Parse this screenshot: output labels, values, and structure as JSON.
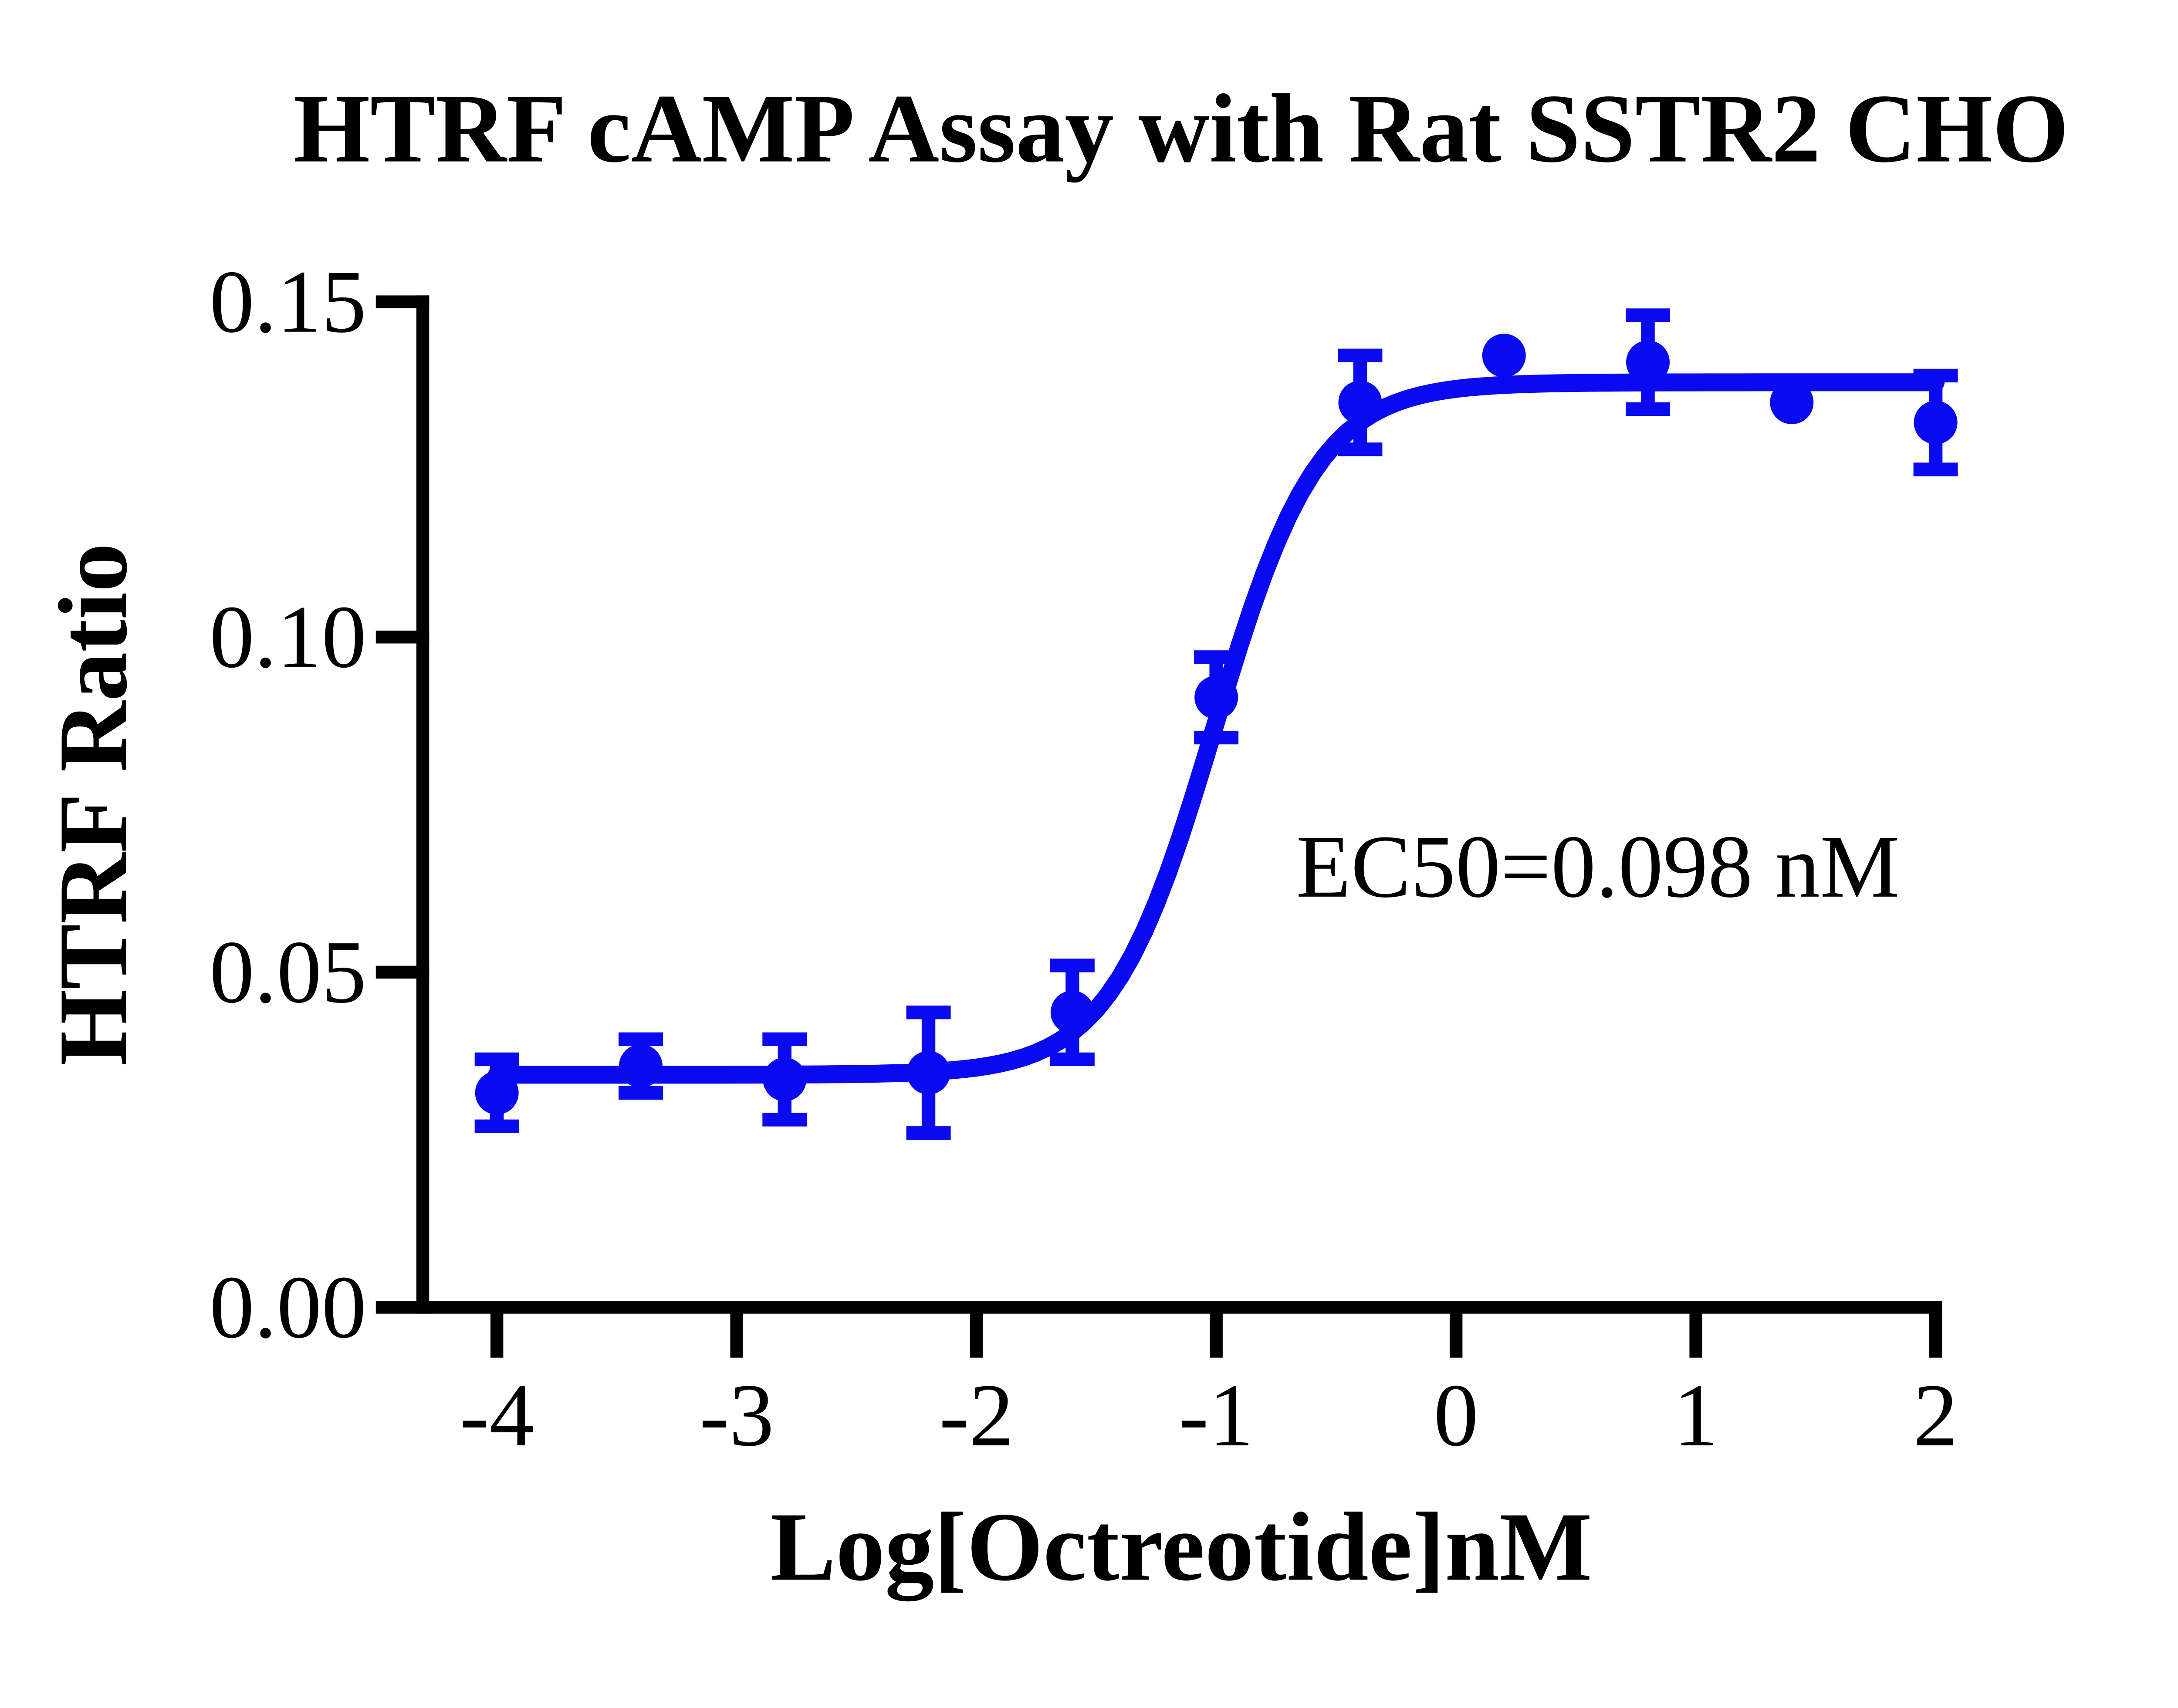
{
  "chart_data": {
    "type": "scatter",
    "title": "HTRF cAMP Assay with Rat SSTR2 CHO",
    "xlabel": "Log[Octreotide]nM",
    "ylabel": "HTRF Ratio",
    "annotation": "EC50=0.098 nM",
    "xlim": [
      -4,
      2
    ],
    "ylim": [
      0,
      0.15
    ],
    "grid": false,
    "legend": "none",
    "x_ticks": [
      {
        "v": -4,
        "label": "-4"
      },
      {
        "v": -3,
        "label": "-3"
      },
      {
        "v": -2,
        "label": "-2"
      },
      {
        "v": -1,
        "label": "-1"
      },
      {
        "v": 0,
        "label": "0"
      },
      {
        "v": 1,
        "label": "1"
      },
      {
        "v": 2,
        "label": "2"
      }
    ],
    "y_ticks": [
      {
        "v": 0.0,
        "label": "0.00"
      },
      {
        "v": 0.05,
        "label": "0.05"
      },
      {
        "v": 0.1,
        "label": "0.10"
      },
      {
        "v": 0.15,
        "label": "0.15"
      }
    ],
    "series": [
      {
        "name": "Octreotide",
        "points": [
          {
            "x": -4.0,
            "y": 0.032,
            "err": 0.005
          },
          {
            "x": -3.4,
            "y": 0.036,
            "err": 0.004
          },
          {
            "x": -2.8,
            "y": 0.034,
            "err": 0.006
          },
          {
            "x": -2.2,
            "y": 0.035,
            "err": 0.009
          },
          {
            "x": -1.6,
            "y": 0.044,
            "err": 0.007
          },
          {
            "x": -1.0,
            "y": 0.091,
            "err": 0.006
          },
          {
            "x": -0.4,
            "y": 0.135,
            "err": 0.007
          },
          {
            "x": 0.2,
            "y": 0.142,
            "err": 0
          },
          {
            "x": 0.8,
            "y": 0.141,
            "err": 0.007
          },
          {
            "x": 1.4,
            "y": 0.135,
            "err": 0
          },
          {
            "x": 2.0,
            "y": 0.132,
            "err": 0.007
          }
        ],
        "fit": {
          "model": "4PL-sigmoid",
          "bottom": 0.0347,
          "top": 0.138,
          "log_ec50": -1.0088,
          "hill": 2.0,
          "ec50_nM": 0.098
        }
      }
    ],
    "colors": {
      "series": "#0a0af0",
      "axis": "#000000",
      "background": "#ffffff"
    }
  }
}
